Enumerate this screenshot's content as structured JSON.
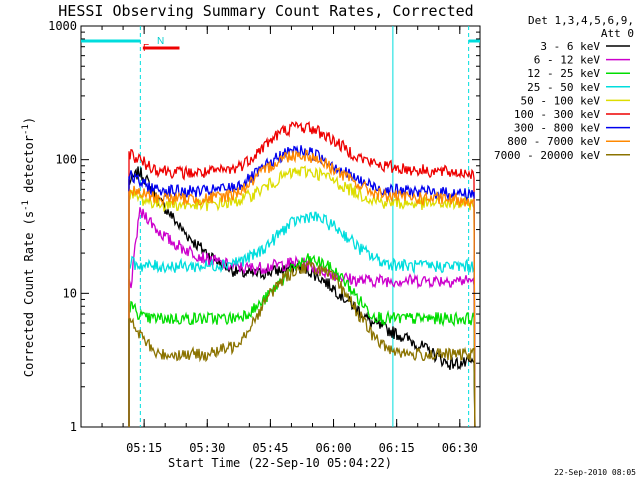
{
  "chart_data": {
    "type": "line",
    "title": "HESSI Observing Summary Count Rates, Corrected",
    "xlabel": "Start Time (22-Sep-10 05:04:22)",
    "ylabel_prefix": "Corrected Count Rate (s",
    "ylabel_sup1": "-1",
    "ylabel_mid": " detector",
    "ylabel_sup2": "-1",
    "ylabel_suffix": ")",
    "y_scale": "log",
    "ylim": [
      1,
      1000
    ],
    "xlim_minutes": [
      5.0,
      6.58
    ],
    "x_tick_labels": [
      {
        "t": 5.25,
        "label": "05:15"
      },
      {
        "t": 5.5,
        "label": "05:30"
      },
      {
        "t": 5.75,
        "label": "05:45"
      },
      {
        "t": 6.0,
        "label": "06:00"
      },
      {
        "t": 6.25,
        "label": "06:15"
      },
      {
        "t": 6.5,
        "label": "06:30"
      }
    ],
    "y_tick_labels": [
      {
        "v": 1,
        "label": "1"
      },
      {
        "v": 10,
        "label": "10"
      },
      {
        "v": 100,
        "label": "100"
      },
      {
        "v": 1000,
        "label": "1000"
      }
    ],
    "legend_header": [
      "Det 1,3,4,5,6,9,",
      "Att 0"
    ],
    "legend_position": "right",
    "flag_labels": {
      "fast": "F",
      "night": "N"
    },
    "date_stamp": "22-Sep-2010 08:05",
    "night_periods_hours": [
      [
        5.0,
        5.235
      ],
      [
        6.535,
        6.58
      ]
    ],
    "fast_rate_period_hours": [
      5.245,
      5.39
    ],
    "grid": false,
    "data_start": 5.19,
    "data_end": 6.56,
    "series": [
      {
        "name": "3 - 6 keV",
        "color": "#000000",
        "points": [
          [
            5.2,
            70
          ],
          [
            5.23,
            82
          ],
          [
            5.26,
            70
          ],
          [
            5.3,
            52
          ],
          [
            5.35,
            40
          ],
          [
            5.4,
            30
          ],
          [
            5.45,
            24
          ],
          [
            5.5,
            20
          ],
          [
            5.55,
            17
          ],
          [
            5.6,
            15
          ],
          [
            5.65,
            14
          ],
          [
            5.7,
            14
          ],
          [
            5.75,
            14.5
          ],
          [
            5.8,
            15
          ],
          [
            5.85,
            16
          ],
          [
            5.9,
            15
          ],
          [
            5.95,
            13
          ],
          [
            6.0,
            11
          ],
          [
            6.05,
            9
          ],
          [
            6.1,
            7.5
          ],
          [
            6.15,
            6
          ],
          [
            6.2,
            5.5
          ],
          [
            6.25,
            5
          ],
          [
            6.3,
            4.5
          ],
          [
            6.35,
            4
          ],
          [
            6.4,
            3.5
          ],
          [
            6.45,
            3
          ]
        ]
      },
      {
        "name": "6 - 12 keV",
        "color": "#cc00cc",
        "points": [
          [
            5.2,
            12
          ],
          [
            5.23,
            40
          ],
          [
            5.26,
            38
          ],
          [
            5.3,
            30
          ],
          [
            5.35,
            25
          ],
          [
            5.4,
            22
          ],
          [
            5.45,
            20
          ],
          [
            5.5,
            18
          ],
          [
            5.55,
            17
          ],
          [
            5.6,
            16
          ],
          [
            5.65,
            15.5
          ],
          [
            5.7,
            15.5
          ],
          [
            5.75,
            16
          ],
          [
            5.8,
            16.5
          ],
          [
            5.85,
            17
          ],
          [
            5.9,
            16.5
          ],
          [
            5.95,
            15
          ],
          [
            6.0,
            14
          ],
          [
            6.05,
            13
          ],
          [
            6.1,
            12.5
          ],
          [
            6.15,
            12.5
          ],
          [
            6.2,
            12.5
          ],
          [
            6.25,
            12.5
          ],
          [
            6.3,
            12.5
          ],
          [
            6.35,
            12.5
          ],
          [
            6.4,
            12.5
          ],
          [
            6.45,
            12.5
          ],
          [
            6.5,
            12.5
          ]
        ]
      },
      {
        "name": "12 - 25 keV",
        "color": "#00dd00",
        "points": [
          [
            5.2,
            8
          ],
          [
            5.25,
            6.5
          ],
          [
            5.3,
            6.5
          ],
          [
            5.4,
            6.5
          ],
          [
            5.5,
            6.5
          ],
          [
            5.6,
            6.5
          ],
          [
            5.65,
            7
          ],
          [
            5.7,
            8
          ],
          [
            5.75,
            10
          ],
          [
            5.8,
            13
          ],
          [
            5.85,
            16
          ],
          [
            5.9,
            18
          ],
          [
            5.95,
            17
          ],
          [
            6.0,
            15
          ],
          [
            6.05,
            12
          ],
          [
            6.1,
            9
          ],
          [
            6.15,
            7
          ],
          [
            6.2,
            6.5
          ],
          [
            6.3,
            6.5
          ],
          [
            6.4,
            6.5
          ],
          [
            6.5,
            6.5
          ]
        ]
      },
      {
        "name": "25 - 50 keV",
        "color": "#00dddd",
        "points": [
          [
            5.2,
            17
          ],
          [
            5.25,
            16
          ],
          [
            5.3,
            16
          ],
          [
            5.4,
            16
          ],
          [
            5.5,
            16
          ],
          [
            5.6,
            17
          ],
          [
            5.65,
            18
          ],
          [
            5.7,
            20
          ],
          [
            5.75,
            24
          ],
          [
            5.8,
            30
          ],
          [
            5.85,
            35
          ],
          [
            5.9,
            38
          ],
          [
            5.95,
            36
          ],
          [
            6.0,
            32
          ],
          [
            6.05,
            27
          ],
          [
            6.1,
            22
          ],
          [
            6.15,
            19
          ],
          [
            6.2,
            17
          ],
          [
            6.3,
            16
          ],
          [
            6.4,
            16
          ],
          [
            6.5,
            16
          ]
        ]
      },
      {
        "name": "50 - 100 keV",
        "color": "#dddd00",
        "points": [
          [
            5.2,
            55
          ],
          [
            5.25,
            50
          ],
          [
            5.3,
            47
          ],
          [
            5.4,
            46
          ],
          [
            5.5,
            46
          ],
          [
            5.6,
            48
          ],
          [
            5.65,
            52
          ],
          [
            5.7,
            58
          ],
          [
            5.75,
            66
          ],
          [
            5.8,
            75
          ],
          [
            5.85,
            81
          ],
          [
            5.9,
            82
          ],
          [
            5.95,
            78
          ],
          [
            6.0,
            70
          ],
          [
            6.05,
            62
          ],
          [
            6.1,
            56
          ],
          [
            6.15,
            51
          ],
          [
            6.2,
            48
          ],
          [
            6.3,
            47
          ],
          [
            6.4,
            47
          ],
          [
            6.5,
            47
          ]
        ]
      },
      {
        "name": "100 - 300 keV",
        "color": "#ee0000",
        "points": [
          [
            5.2,
            110
          ],
          [
            5.25,
            95
          ],
          [
            5.3,
            85
          ],
          [
            5.4,
            80
          ],
          [
            5.5,
            80
          ],
          [
            5.6,
            85
          ],
          [
            5.65,
            95
          ],
          [
            5.7,
            115
          ],
          [
            5.75,
            140
          ],
          [
            5.8,
            165
          ],
          [
            5.85,
            178
          ],
          [
            5.9,
            175
          ],
          [
            5.95,
            160
          ],
          [
            6.0,
            140
          ],
          [
            6.05,
            120
          ],
          [
            6.1,
            105
          ],
          [
            6.15,
            95
          ],
          [
            6.2,
            90
          ],
          [
            6.3,
            85
          ],
          [
            6.4,
            82
          ],
          [
            6.5,
            80
          ]
        ]
      },
      {
        "name": "300 - 800 keV",
        "color": "#0000ee",
        "points": [
          [
            5.2,
            75
          ],
          [
            5.25,
            65
          ],
          [
            5.3,
            60
          ],
          [
            5.4,
            58
          ],
          [
            5.5,
            58
          ],
          [
            5.6,
            62
          ],
          [
            5.65,
            68
          ],
          [
            5.7,
            80
          ],
          [
            5.75,
            95
          ],
          [
            5.8,
            110
          ],
          [
            5.85,
            118
          ],
          [
            5.9,
            115
          ],
          [
            5.95,
            105
          ],
          [
            6.0,
            92
          ],
          [
            6.05,
            80
          ],
          [
            6.1,
            70
          ],
          [
            6.15,
            64
          ],
          [
            6.2,
            60
          ],
          [
            6.3,
            58
          ],
          [
            6.4,
            57
          ],
          [
            6.5,
            56
          ]
        ]
      },
      {
        "name": "800 - 7000 keV",
        "color": "#ff8800",
        "points": [
          [
            5.2,
            58
          ],
          [
            5.25,
            55
          ],
          [
            5.3,
            52
          ],
          [
            5.4,
            51
          ],
          [
            5.5,
            51
          ],
          [
            5.6,
            55
          ],
          [
            5.65,
            62
          ],
          [
            5.7,
            75
          ],
          [
            5.75,
            90
          ],
          [
            5.8,
            104
          ],
          [
            5.85,
            110
          ],
          [
            5.9,
            108
          ],
          [
            5.95,
            98
          ],
          [
            6.0,
            86
          ],
          [
            6.05,
            74
          ],
          [
            6.1,
            65
          ],
          [
            6.15,
            58
          ],
          [
            6.2,
            54
          ],
          [
            6.3,
            52
          ],
          [
            6.4,
            51
          ],
          [
            6.5,
            50
          ]
        ]
      },
      {
        "name": "7000 - 20000 keV",
        "color": "#8b7300",
        "points": [
          [
            5.2,
            6
          ],
          [
            5.25,
            4.5
          ],
          [
            5.3,
            3.5
          ],
          [
            5.4,
            3.5
          ],
          [
            5.5,
            3.5
          ],
          [
            5.6,
            4
          ],
          [
            5.65,
            5
          ],
          [
            5.7,
            7
          ],
          [
            5.75,
            10
          ],
          [
            5.8,
            13
          ],
          [
            5.85,
            15
          ],
          [
            5.9,
            16
          ],
          [
            5.95,
            15
          ],
          [
            6.0,
            13
          ],
          [
            6.05,
            10
          ],
          [
            6.1,
            7
          ],
          [
            6.15,
            5
          ],
          [
            6.2,
            4
          ],
          [
            6.3,
            3.5
          ],
          [
            6.4,
            3.5
          ],
          [
            6.5,
            3.5
          ]
        ]
      }
    ]
  }
}
